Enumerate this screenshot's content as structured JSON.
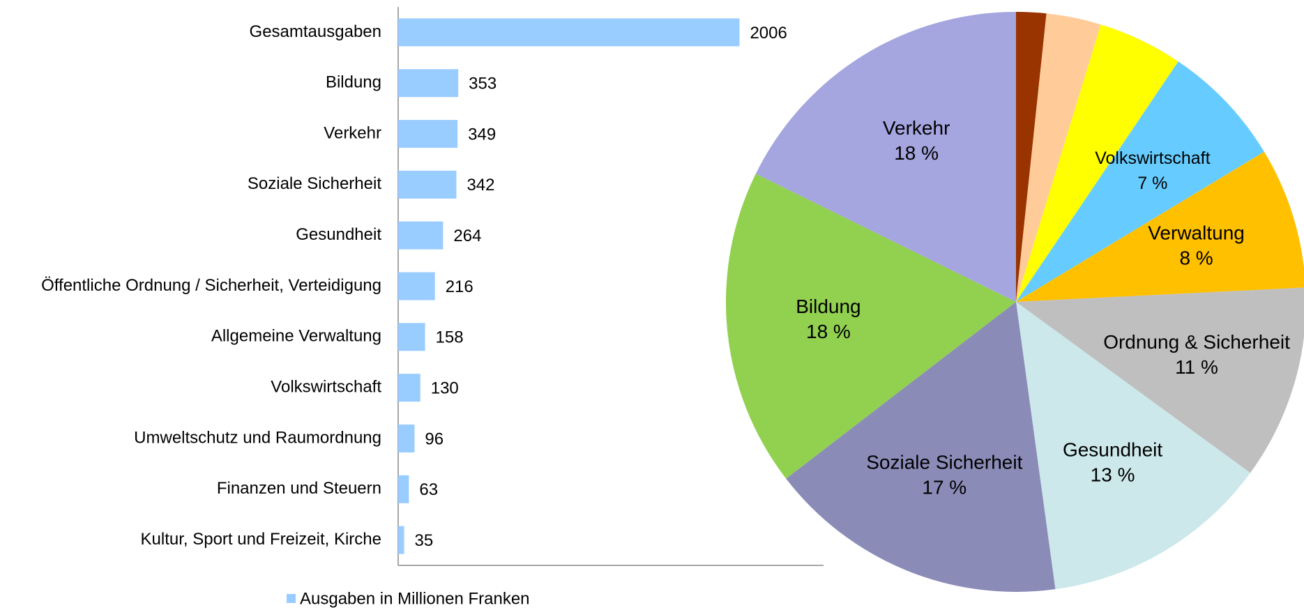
{
  "chart_data": [
    {
      "type": "hbar",
      "categories": [
        "Gesamtausgaben",
        "Bildung",
        "Verkehr",
        "Soziale Sicherheit",
        "Gesundheit",
        "Öffentliche Ordnung / Sicherheit, Verteidigung",
        "Allgemeine Verwaltung",
        "Volkswirtschaft",
        "Umweltschutz und Raumordnung",
        "Finanzen und Steuern",
        "Kultur, Sport und Freizeit, Kirche"
      ],
      "series": [
        {
          "name": "Ausgaben in Millionen Franken",
          "color": "#99ccff",
          "values": [
            2006,
            353,
            349,
            342,
            264,
            216,
            158,
            130,
            96,
            63,
            35
          ]
        }
      ],
      "xlim": [
        0,
        2500
      ],
      "legend": "bottom"
    },
    {
      "type": "pie",
      "categories": [
        null,
        null,
        null,
        "Volkswirtschaft",
        "Verwaltung",
        "Ordnung & Sicherheit",
        "Gesundheit",
        "Soziale Sicherheit",
        "Bildung",
        "Verkehr"
      ],
      "values": [
        1.7,
        3.1,
        4.8,
        7,
        8,
        11,
        13,
        17,
        18,
        18
      ],
      "value_labels": [
        null,
        null,
        null,
        "7 %",
        "8 %",
        "11 %",
        "13 %",
        "17 %",
        "18 %",
        "18 %"
      ],
      "colors": [
        "#993300",
        "#ffcc99",
        "#ffff00",
        "#66ccff",
        "#ffc000",
        "#bfbfbf",
        "#cce8ea",
        "#8b8bb8",
        "#92d050",
        "#a5a5e0"
      ]
    }
  ]
}
